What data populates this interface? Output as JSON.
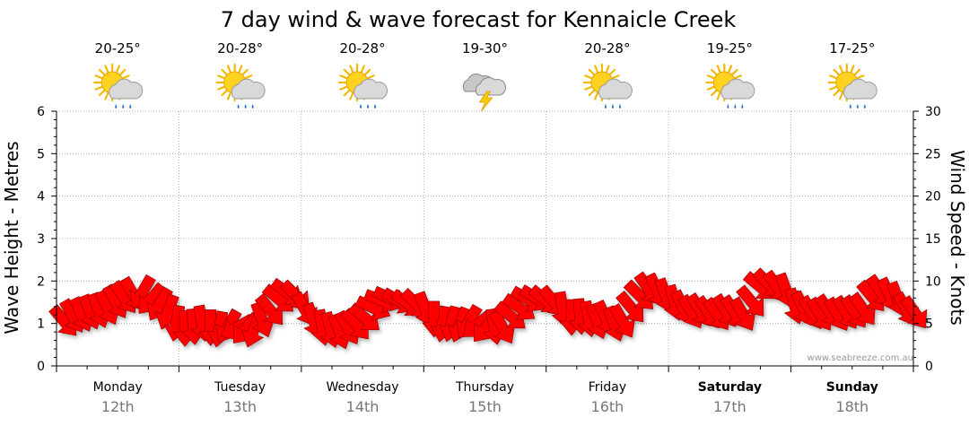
{
  "chart_data": {
    "type": "line",
    "title": "7 day wind & wave forecast for Kennaicle Creek",
    "ylabel_left": "Wave Height - Metres",
    "ylabel_right": "Wind Speed - Knots",
    "ylim_left": [
      0,
      6
    ],
    "ylim_right": [
      0,
      30
    ],
    "yticks_left": [
      "0",
      "1",
      "2",
      "3",
      "4",
      "5",
      "6"
    ],
    "yticks_right": [
      "0",
      "5",
      "10",
      "15",
      "20",
      "25",
      "30"
    ],
    "days": [
      {
        "name": "Monday",
        "date": "12th",
        "temp": "20-25°",
        "icon": "sun-cloud-rain-icon",
        "bold": false
      },
      {
        "name": "Tuesday",
        "date": "13th",
        "temp": "20-28°",
        "icon": "sun-cloud-rain-icon",
        "bold": false
      },
      {
        "name": "Wednesday",
        "date": "14th",
        "temp": "20-28°",
        "icon": "sun-cloud-rain-icon",
        "bold": false
      },
      {
        "name": "Thursday",
        "date": "15th",
        "temp": "19-30°",
        "icon": "thunderstorm-icon",
        "bold": false
      },
      {
        "name": "Friday",
        "date": "16th",
        "temp": "20-28°",
        "icon": "sun-cloud-rain-icon",
        "bold": false
      },
      {
        "name": "Saturday",
        "date": "17th",
        "temp": "19-25°",
        "icon": "sun-cloud-rain-icon",
        "bold": true
      },
      {
        "name": "Sunday",
        "date": "18th",
        "temp": "17-25°",
        "icon": "sun-cloud-rain-icon",
        "bold": true
      }
    ],
    "series": [
      {
        "name": "Wind Speed (knots)",
        "color": "#ff0000",
        "values": [
          5.2,
          5.8,
          6.0,
          6.3,
          6.5,
          6.8,
          7.5,
          8.0,
          8.4,
          8.6,
          7.8,
          7.2,
          6.3,
          5.0,
          4.4,
          4.6,
          5.0,
          4.5,
          4.3,
          4.6,
          4.5,
          4.3,
          4.2,
          5.4,
          6.5,
          7.8,
          8.6,
          8.2,
          6.6,
          5.3,
          4.5,
          4.2,
          4.0,
          4.4,
          4.8,
          5.6,
          6.8,
          7.7,
          7.9,
          7.6,
          7.3,
          7.2,
          6.6,
          5.5,
          4.9,
          4.9,
          4.8,
          5.1,
          4.8,
          4.5,
          4.6,
          4.5,
          5.8,
          6.8,
          7.8,
          7.9,
          7.7,
          7.5,
          6.6,
          5.7,
          5.8,
          5.5,
          5.2,
          5.6,
          4.9,
          5.2,
          6.8,
          8.2,
          9.0,
          8.8,
          8.2,
          7.4,
          6.8,
          6.3,
          6.5,
          6.2,
          6.0,
          6.4,
          6.3,
          6.0,
          7.5,
          9.3,
          9.6,
          9.2,
          8.8,
          7.0,
          6.7,
          6.2,
          6.0,
          6.4,
          6.0,
          6.2,
          6.3,
          6.6,
          8.1,
          8.7,
          8.3,
          7.8,
          6.6,
          6.2
        ],
        "direction_deg": [
          230,
          240,
          245,
          248,
          250,
          245,
          240,
          235,
          240,
          300,
          310,
          300,
          290,
          280,
          270,
          265,
          260,
          270,
          280,
          300,
          330,
          310,
          290,
          250,
          230,
          220,
          215,
          225,
          240,
          250,
          260,
          255,
          250,
          240,
          230,
          220,
          205,
          200,
          205,
          210,
          215,
          225,
          250,
          270,
          280,
          285,
          290,
          300,
          320,
          310,
          260,
          240,
          220,
          215,
          210,
          212,
          220,
          230,
          260,
          270,
          265,
          260,
          250,
          245,
          250,
          240,
          230,
          225,
          235,
          245,
          250,
          255,
          245,
          240,
          238,
          236,
          235,
          238,
          236,
          240,
          230,
          220,
          225,
          235,
          250,
          255,
          245,
          240,
          238,
          236,
          240,
          238,
          236,
          235,
          230,
          235,
          245,
          250,
          240,
          235
        ]
      }
    ],
    "watermark": "www.seabreeze.com.au"
  }
}
